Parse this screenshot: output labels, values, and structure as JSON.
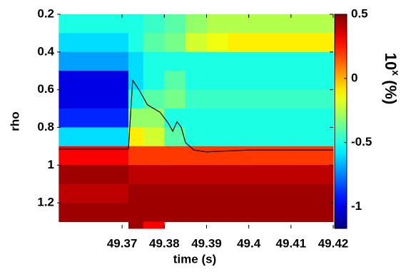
{
  "chart_data": {
    "type": "heatmap",
    "x_label": "time (s)",
    "y_label": "rho",
    "colorbar_label": [
      "10",
      "x",
      " (%)"
    ],
    "time_edges": [
      49.355,
      49.3715,
      49.375,
      49.38,
      49.385,
      49.39,
      49.395,
      49.4,
      49.41,
      49.42
    ],
    "rho_edges": [
      0.2,
      0.3,
      0.4,
      0.5,
      0.6,
      0.7,
      0.8,
      0.9,
      1.0,
      1.1,
      1.2,
      1.3,
      1.336
    ],
    "z": [
      [
        -0.5,
        -0.6,
        -0.7,
        -1.0,
        -1.0,
        -0.9,
        -0.6,
        0.3,
        0.45,
        0.4,
        0.45,
        null
      ],
      [
        -0.5,
        -0.5,
        -0.6,
        -0.6,
        -0.5,
        -0.3,
        -0.1,
        0.2,
        0.4,
        0.45,
        0.45,
        0.45
      ],
      [
        -0.45,
        -0.4,
        -0.5,
        -0.5,
        -0.4,
        -0.3,
        -0.2,
        0.2,
        0.4,
        0.45,
        0.45,
        0.3
      ],
      [
        -0.4,
        -0.35,
        -0.5,
        -0.4,
        -0.35,
        -0.5,
        -0.4,
        0.2,
        0.4,
        0.45,
        0.45,
        null
      ],
      [
        -0.3,
        -0.2,
        -0.5,
        -0.5,
        -0.45,
        -0.5,
        -0.5,
        0.2,
        0.4,
        0.45,
        0.45,
        null
      ],
      [
        -0.25,
        -0.15,
        -0.5,
        -0.5,
        -0.45,
        -0.5,
        -0.5,
        0.2,
        0.4,
        0.45,
        0.45,
        null
      ],
      [
        -0.25,
        -0.1,
        -0.5,
        -0.5,
        -0.45,
        -0.5,
        -0.5,
        0.2,
        0.4,
        0.45,
        0.45,
        null
      ],
      [
        -0.25,
        -0.1,
        -0.5,
        -0.5,
        -0.45,
        -0.5,
        -0.5,
        0.2,
        0.4,
        0.45,
        0.45,
        null
      ],
      [
        -0.25,
        -0.1,
        -0.5,
        -0.5,
        -0.45,
        -0.5,
        -0.5,
        0.2,
        0.4,
        0.45,
        0.45,
        null
      ]
    ],
    "line": {
      "color": "#000000",
      "x": [
        49.355,
        49.3715,
        49.3725,
        49.374,
        49.376,
        49.379,
        49.381,
        49.382,
        49.383,
        49.384,
        49.385,
        49.387,
        49.39,
        49.395,
        49.4,
        49.42
      ],
      "y": [
        0.915,
        0.915,
        0.55,
        0.6,
        0.68,
        0.72,
        0.78,
        0.82,
        0.77,
        0.8,
        0.88,
        0.92,
        0.93,
        0.925,
        0.92,
        0.92
      ]
    },
    "xlim": [
      49.3546,
      49.42
    ],
    "xticks": [
      49.37,
      49.38,
      49.39,
      49.4,
      49.41,
      49.42
    ],
    "ylim": [
      1.336,
      0.2
    ],
    "yticks": [
      0.2,
      0.4,
      0.6,
      0.8,
      1,
      1.2
    ],
    "clim": [
      -1.17,
      0.5
    ],
    "cticks": [
      0.5,
      0,
      -0.5,
      -1
    ],
    "colormap": "jet"
  }
}
